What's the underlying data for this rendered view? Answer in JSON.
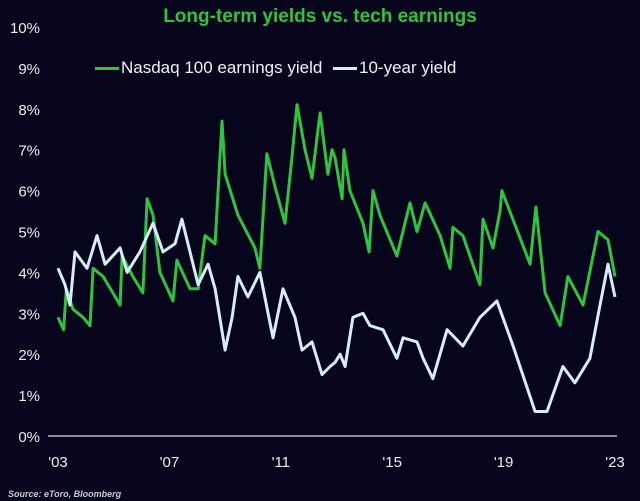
{
  "chart_data": {
    "type": "line",
    "title": "Long-term yields vs. tech earnings",
    "xlabel": "",
    "ylabel": "",
    "xlim": [
      2003,
      2023
    ],
    "ylim": [
      0,
      10
    ],
    "grid": false,
    "legend_position": "top-center",
    "x_ticks": [
      {
        "value": 2003,
        "label": "'03"
      },
      {
        "value": 2007,
        "label": "'07"
      },
      {
        "value": 2011,
        "label": "'11"
      },
      {
        "value": 2015,
        "label": "'15"
      },
      {
        "value": 2019,
        "label": "'19"
      },
      {
        "value": 2023,
        "label": "'23"
      }
    ],
    "y_ticks": [
      {
        "value": 0,
        "label": "0%"
      },
      {
        "value": 1,
        "label": "1%"
      },
      {
        "value": 2,
        "label": "2%"
      },
      {
        "value": 3,
        "label": "3%"
      },
      {
        "value": 4,
        "label": "4%"
      },
      {
        "value": 5,
        "label": "5%"
      },
      {
        "value": 6,
        "label": "6%"
      },
      {
        "value": 7,
        "label": "7%"
      },
      {
        "value": 8,
        "label": "8%"
      },
      {
        "value": 9,
        "label": "9%"
      },
      {
        "value": 10,
        "label": "10%"
      }
    ],
    "series": [
      {
        "name": "Nasdaq 100 earnings yield",
        "color": "#2ec53e",
        "x": [
          2003.0,
          2003.2,
          2003.3,
          2003.54,
          2003.9,
          2004.15,
          2004.26,
          2004.62,
          2004.97,
          2005.23,
          2005.3,
          2005.69,
          2006.05,
          2006.2,
          2006.41,
          2006.66,
          2007.13,
          2007.27,
          2007.74,
          2008.03,
          2008.28,
          2008.64,
          2008.89,
          2009.0,
          2009.46,
          2010.07,
          2010.25,
          2010.5,
          2010.79,
          2011.15,
          2011.4,
          2011.58,
          2011.87,
          2012.12,
          2012.41,
          2012.69,
          2012.84,
          2012.95,
          2013.2,
          2013.27,
          2013.48,
          2013.95,
          2014.17,
          2014.31,
          2014.56,
          2015.17,
          2015.64,
          2015.89,
          2016.18,
          2016.72,
          2017.08,
          2017.18,
          2017.54,
          2018.15,
          2018.26,
          2018.62,
          2018.87,
          2018.94,
          2019.95,
          2020.16,
          2020.49,
          2021.03,
          2021.31,
          2021.85,
          2022.39,
          2022.75,
          2023.0
        ],
        "y": [
          2.9,
          2.6,
          3.6,
          3.1,
          2.9,
          2.7,
          4.1,
          3.9,
          3.5,
          3.2,
          4.4,
          3.9,
          3.5,
          5.8,
          5.4,
          4.0,
          3.3,
          4.3,
          3.6,
          3.6,
          4.9,
          4.7,
          7.7,
          6.4,
          5.4,
          4.6,
          4.1,
          6.9,
          6.1,
          5.2,
          6.8,
          8.1,
          7.0,
          6.3,
          7.9,
          6.4,
          7.0,
          6.8,
          5.8,
          7.0,
          6.0,
          5.2,
          4.5,
          6.0,
          5.4,
          4.4,
          5.7,
          5.0,
          5.7,
          4.9,
          4.1,
          5.1,
          4.9,
          3.7,
          5.3,
          4.6,
          5.5,
          6.0,
          4.2,
          5.6,
          3.5,
          2.7,
          3.9,
          3.2,
          5.0,
          4.8,
          3.9
        ]
      },
      {
        "name": "10-year yield",
        "color": "#d6ecfb",
        "x": [
          2003.0,
          2003.25,
          2003.43,
          2003.61,
          2004.04,
          2004.4,
          2004.69,
          2005.23,
          2005.48,
          2005.94,
          2006.41,
          2006.77,
          2007.2,
          2007.45,
          2007.74,
          2008.03,
          2008.39,
          2008.64,
          2009.0,
          2009.25,
          2009.46,
          2009.82,
          2010.25,
          2010.72,
          2011.08,
          2011.51,
          2011.76,
          2012.12,
          2012.48,
          2012.77,
          2012.95,
          2013.13,
          2013.31,
          2013.59,
          2013.95,
          2014.2,
          2014.67,
          2015.17,
          2015.39,
          2015.89,
          2016.11,
          2016.46,
          2016.97,
          2017.54,
          2018.15,
          2018.76,
          2019.34,
          2020.13,
          2020.56,
          2021.13,
          2021.56,
          2022.1,
          2022.46,
          2022.75,
          2023.0
        ],
        "y": [
          4.1,
          3.7,
          3.2,
          4.5,
          4.1,
          4.9,
          4.2,
          4.6,
          4.0,
          4.5,
          5.2,
          4.5,
          4.7,
          5.3,
          4.5,
          3.7,
          4.2,
          3.6,
          2.1,
          2.9,
          3.9,
          3.4,
          4.0,
          2.4,
          3.6,
          2.9,
          2.1,
          2.3,
          1.5,
          1.7,
          1.8,
          2.0,
          1.7,
          2.9,
          3.0,
          2.7,
          2.6,
          1.9,
          2.4,
          2.3,
          1.9,
          1.4,
          2.6,
          2.2,
          2.9,
          3.3,
          2.2,
          0.6,
          0.6,
          1.7,
          1.3,
          1.9,
          3.2,
          4.2,
          3.4
        ]
      }
    ],
    "source": "Source: eToro, Bloomberg"
  }
}
